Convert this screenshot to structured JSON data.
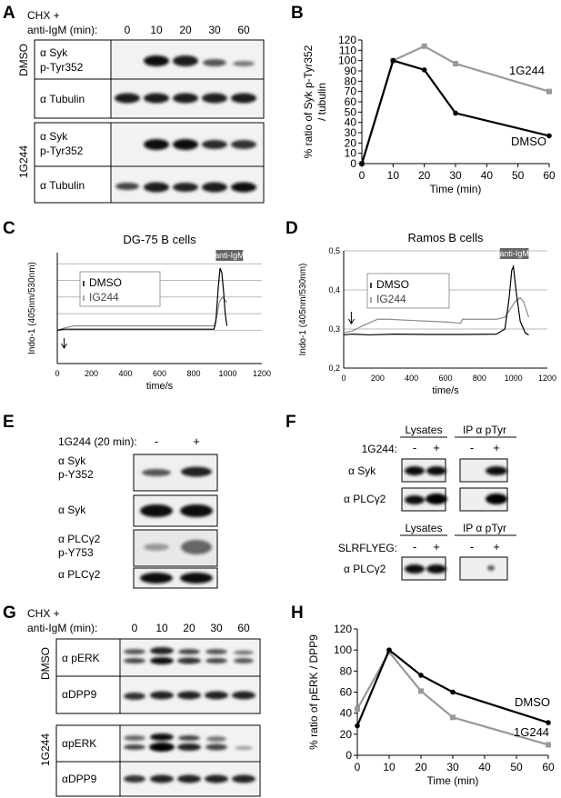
{
  "panel_letters": {
    "a": "A",
    "b": "B",
    "c": "C",
    "d": "D",
    "e": "E",
    "f": "F",
    "g": "G",
    "h": "H"
  },
  "blots": {
    "a": {
      "treatment_line1": "CHX +",
      "treatment_line2": "anti-IgM (min):",
      "timepoints": [
        "0",
        "10",
        "20",
        "30",
        "60"
      ],
      "group_dmso": "DMSO",
      "group_1g244": "1G244",
      "row_syk_l1": "α Syk",
      "row_syk_l2": "p-Tyr352",
      "row_tubulin": "α Tubulin"
    },
    "e": {
      "treatment": "1G244 (20 min):",
      "signs": [
        "-",
        "+"
      ],
      "rows": [
        {
          "l1": "α Syk",
          "l2": "p-Y352"
        },
        {
          "l1": "α Syk",
          "l2": ""
        },
        {
          "l1": "α PLCγ2",
          "l2": "p-Y753"
        },
        {
          "l1": "α PLCγ2",
          "l2": ""
        }
      ]
    },
    "f": {
      "lysates": "Lysates",
      "ip": "IP α pTyr",
      "treatment_top": "1G244:",
      "treatment_bottom": "SLRFLYEG:",
      "signs": [
        "-",
        "+"
      ],
      "row_syk": "α Syk",
      "row_plc": "α PLCγ2"
    },
    "g": {
      "treatment_line1": "CHX +",
      "treatment_line2": "anti-IgM (min):",
      "timepoints": [
        "0",
        "10",
        "20",
        "30",
        "60"
      ],
      "group_dmso": "DMSO",
      "group_1g244": "1G244",
      "row_perk_dmso": "α pERK",
      "row_dpp9_dmso": "αDPP9",
      "row_perk_1g244": "αpERK",
      "row_dpp9_1g244": "αDPP9"
    }
  },
  "colors": {
    "dmso": "#000000",
    "g1g244": "#999999"
  },
  "chart_data": [
    {
      "panel": "B",
      "type": "line",
      "ylabel": "% ratio of Syk p-Tyr352 / tubulin",
      "xlabel": "Time (min)",
      "xlim": [
        0,
        60
      ],
      "ylim": [
        0,
        120
      ],
      "xticks": [
        0,
        10,
        20,
        30,
        40,
        50,
        60
      ],
      "yticks": [
        0,
        10,
        20,
        30,
        40,
        50,
        60,
        70,
        80,
        90,
        100,
        110,
        120
      ],
      "series": [
        {
          "name": "DMSO",
          "x": [
            0,
            10,
            20,
            30,
            60
          ],
          "y": [
            0,
            100,
            91,
            49,
            27
          ]
        },
        {
          "name": "1G244",
          "x": [
            0,
            10,
            20,
            30,
            60
          ],
          "y": [
            0,
            100,
            114,
            97,
            70
          ]
        }
      ]
    },
    {
      "panel": "C",
      "type": "line",
      "title": "DG-75 B cells",
      "ylabel": "Indo-1 (405nm/530nm)",
      "xlabel": "time/s",
      "annotation": "anti-IgM",
      "xlim": [
        0,
        1200
      ],
      "ylim": [
        0,
        1
      ],
      "xticks": [
        0,
        200,
        400,
        600,
        800,
        1000,
        1200
      ],
      "yticks": [],
      "series": [
        {
          "name": "DMSO",
          "x": [
            0,
            40,
            100,
            300,
            600,
            850,
            920,
            930,
            945,
            955,
            965,
            975,
            985,
            995
          ],
          "y": [
            0.3,
            0.31,
            0.31,
            0.31,
            0.31,
            0.31,
            0.31,
            0.38,
            0.7,
            0.86,
            0.82,
            0.66,
            0.45,
            0.34
          ]
        },
        {
          "name": "IG244",
          "x": [
            0,
            40,
            100,
            300,
            600,
            850,
            920,
            935,
            950,
            960,
            970,
            980,
            995
          ],
          "y": [
            0.3,
            0.32,
            0.34,
            0.34,
            0.34,
            0.34,
            0.34,
            0.42,
            0.55,
            0.58,
            0.6,
            0.58,
            0.55
          ]
        }
      ]
    },
    {
      "panel": "D",
      "type": "line",
      "title": "Ramos B cells",
      "ylabel": "Indo-1 (405nm/530nm)",
      "xlabel": "time/s",
      "annotation": "anti-IgM",
      "xlim": [
        0,
        1200
      ],
      "ylim": [
        0.2,
        0.5
      ],
      "xticks": [
        0,
        200,
        400,
        600,
        800,
        1000,
        1200
      ],
      "yticks": [
        "0,2",
        "0,3",
        "0,4",
        "0,5"
      ],
      "series": [
        {
          "name": "DMSO",
          "x": [
            0,
            50,
            150,
            300,
            500,
            700,
            900,
            950,
            975,
            990,
            1000,
            1015,
            1040,
            1070,
            1090
          ],
          "y": [
            0.285,
            0.287,
            0.285,
            0.287,
            0.286,
            0.286,
            0.287,
            0.3,
            0.38,
            0.45,
            0.46,
            0.4,
            0.32,
            0.29,
            0.285
          ]
        },
        {
          "name": "IG244",
          "x": [
            0,
            50,
            120,
            200,
            260,
            400,
            600,
            690,
            700,
            900,
            950,
            980,
            1010,
            1040,
            1060,
            1090
          ],
          "y": [
            0.29,
            0.295,
            0.31,
            0.325,
            0.325,
            0.322,
            0.318,
            0.315,
            0.325,
            0.325,
            0.33,
            0.35,
            0.37,
            0.38,
            0.37,
            0.33
          ]
        }
      ]
    },
    {
      "panel": "H",
      "type": "line",
      "ylabel": "% ratio of pERK / DPP9",
      "xlabel": "Time (min)",
      "xlim": [
        0,
        60
      ],
      "ylim": [
        0,
        120
      ],
      "xticks": [
        0,
        10,
        20,
        30,
        40,
        50,
        60
      ],
      "yticks": [
        0,
        20,
        40,
        60,
        80,
        100,
        120
      ],
      "series": [
        {
          "name": "DMSO",
          "x": [
            0,
            10,
            20,
            30,
            60
          ],
          "y": [
            28,
            100,
            76,
            60,
            31
          ]
        },
        {
          "name": "1G244",
          "x": [
            0,
            10,
            20,
            30,
            60
          ],
          "y": [
            44,
            98,
            61,
            36,
            10
          ]
        }
      ]
    }
  ]
}
